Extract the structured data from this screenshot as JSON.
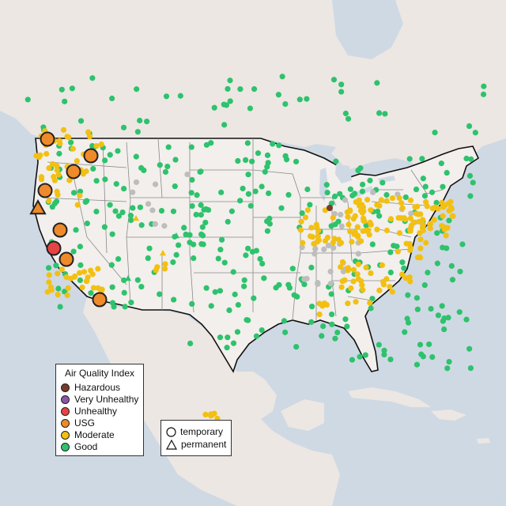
{
  "map": {
    "colors": {
      "ocean": "#cfd9e4",
      "land": "#ece7e3",
      "us_land": "#f2efec",
      "state_border": "#8a8a8a",
      "country_border": "#111111"
    },
    "markers": {
      "good_color": "#2ec26d",
      "moderate_color": "#f2c012",
      "usg_color": "#ef8a2a",
      "unhealthy_color": "#e64444",
      "very_unhealthy_color": "#8c55a8",
      "hazardous_color": "#7a3a2a",
      "no_data_color": "#bdbdbd"
    }
  },
  "aqi_legend": {
    "title": "Air Quality Index",
    "items": [
      {
        "label": "Hazardous",
        "color": "#7a3a2a"
      },
      {
        "label": "Very Unhealthy",
        "color": "#8c55a8"
      },
      {
        "label": "Unhealthy",
        "color": "#e64444"
      },
      {
        "label": "USG",
        "color": "#ef8a2a"
      },
      {
        "label": "Moderate",
        "color": "#f2c012"
      },
      {
        "label": "Good",
        "color": "#2ec26d"
      }
    ]
  },
  "type_legend": {
    "items": [
      {
        "label": "temporary",
        "shape": "circle"
      },
      {
        "label": "permanent",
        "shape": "triangle"
      }
    ]
  }
}
